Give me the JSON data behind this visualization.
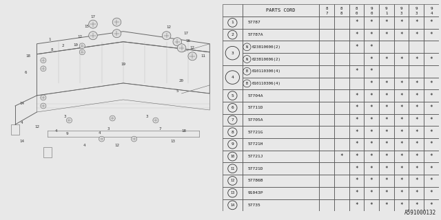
{
  "bg_color": "#e8e8e8",
  "table_bg": "#f0f0f0",
  "part_number_label": "A591000132",
  "year_headers_top": [
    "8",
    "8",
    "8",
    "9",
    "9",
    "9",
    "9",
    "9"
  ],
  "year_headers_bot": [
    "7",
    "8",
    "0",
    "0",
    "1",
    "3",
    "3",
    "4"
  ],
  "rows_data": [
    {
      "group": "1",
      "first_in_group": true,
      "group_span": 1,
      "part": "57787",
      "prefix": "",
      "marks": [
        0,
        0,
        1,
        1,
        1,
        1,
        1,
        1
      ]
    },
    {
      "group": "2",
      "first_in_group": true,
      "group_span": 1,
      "part": "57787A",
      "prefix": "",
      "marks": [
        0,
        0,
        1,
        1,
        1,
        1,
        1,
        1
      ]
    },
    {
      "group": "3",
      "first_in_group": true,
      "group_span": 2,
      "part": "023810000(2)",
      "prefix": "N",
      "marks": [
        0,
        0,
        1,
        1,
        0,
        0,
        0,
        0
      ]
    },
    {
      "group": "3",
      "first_in_group": false,
      "group_span": 2,
      "part": "023810006(2)",
      "prefix": "N",
      "marks": [
        0,
        0,
        0,
        1,
        1,
        1,
        1,
        1
      ]
    },
    {
      "group": "4",
      "first_in_group": true,
      "group_span": 2,
      "part": "010110300(4)",
      "prefix": "B",
      "marks": [
        0,
        0,
        1,
        1,
        0,
        0,
        0,
        0
      ]
    },
    {
      "group": "4",
      "first_in_group": false,
      "group_span": 2,
      "part": "010110306(4)",
      "prefix": "B",
      "marks": [
        0,
        0,
        0,
        1,
        1,
        1,
        1,
        1
      ]
    },
    {
      "group": "5",
      "first_in_group": true,
      "group_span": 1,
      "part": "57704A",
      "prefix": "",
      "marks": [
        0,
        0,
        1,
        1,
        1,
        1,
        1,
        1
      ]
    },
    {
      "group": "6",
      "first_in_group": true,
      "group_span": 1,
      "part": "57711D",
      "prefix": "",
      "marks": [
        0,
        0,
        1,
        1,
        1,
        1,
        1,
        1
      ]
    },
    {
      "group": "7",
      "first_in_group": true,
      "group_span": 1,
      "part": "57705A",
      "prefix": "",
      "marks": [
        0,
        0,
        1,
        1,
        1,
        1,
        1,
        1
      ]
    },
    {
      "group": "8",
      "first_in_group": true,
      "group_span": 1,
      "part": "57721G",
      "prefix": "",
      "marks": [
        0,
        0,
        1,
        1,
        1,
        1,
        1,
        1
      ]
    },
    {
      "group": "9",
      "first_in_group": true,
      "group_span": 1,
      "part": "57721H",
      "prefix": "",
      "marks": [
        0,
        0,
        1,
        1,
        1,
        1,
        1,
        1
      ]
    },
    {
      "group": "10",
      "first_in_group": true,
      "group_span": 1,
      "part": "57721J",
      "prefix": "",
      "marks": [
        0,
        1,
        1,
        1,
        1,
        1,
        1,
        1
      ]
    },
    {
      "group": "11",
      "first_in_group": true,
      "group_span": 1,
      "part": "57721D",
      "prefix": "",
      "marks": [
        0,
        0,
        1,
        1,
        1,
        1,
        1,
        1
      ]
    },
    {
      "group": "12",
      "first_in_group": true,
      "group_span": 1,
      "part": "57786B",
      "prefix": "",
      "marks": [
        0,
        0,
        1,
        1,
        1,
        1,
        1,
        1
      ]
    },
    {
      "group": "13",
      "first_in_group": true,
      "group_span": 1,
      "part": "91043P",
      "prefix": "",
      "marks": [
        0,
        0,
        1,
        1,
        1,
        1,
        1,
        1
      ]
    },
    {
      "group": "14",
      "first_in_group": true,
      "group_span": 1,
      "part": "57735",
      "prefix": "",
      "marks": [
        0,
        0,
        1,
        1,
        1,
        1,
        1,
        1
      ]
    }
  ]
}
